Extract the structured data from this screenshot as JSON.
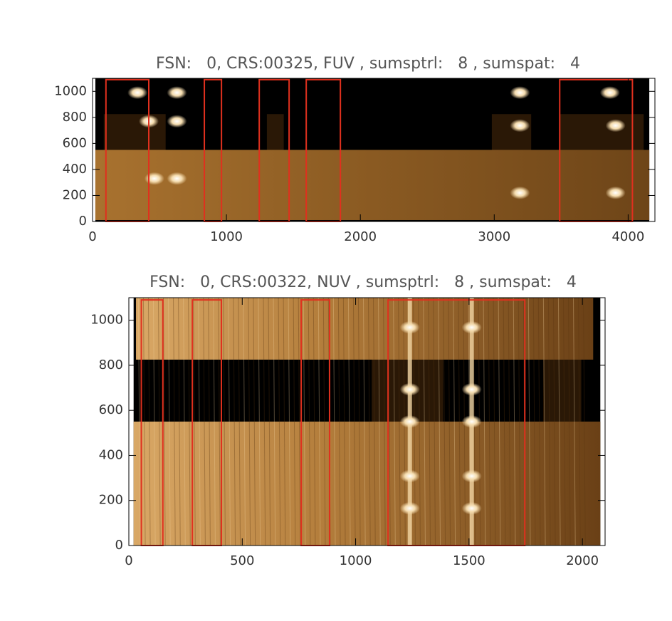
{
  "chart_data": [
    {
      "type": "image",
      "title": "FSN:   0, CRS:00325, FUV , sumsptrl:   8 , sumspat:   4",
      "xlim": [
        0,
        4200
      ],
      "ylim": [
        0,
        1100
      ],
      "xticks": [
        0,
        1000,
        2000,
        3000,
        4000
      ],
      "yticks": [
        0,
        200,
        400,
        600,
        800,
        1000
      ],
      "region_color": "#e0301e",
      "regions": [
        {
          "x": [
            100,
            420
          ],
          "y": [
            0,
            1090
          ]
        },
        {
          "x": [
            835,
            963
          ],
          "y": [
            0,
            1090
          ]
        },
        {
          "x": [
            1245,
            1468
          ],
          "y": [
            0,
            1090
          ]
        },
        {
          "x": [
            1596,
            1851
          ],
          "y": [
            0,
            1090
          ]
        },
        {
          "x": [
            3489,
            4032
          ],
          "y": [
            0,
            1090
          ]
        }
      ]
    },
    {
      "type": "image",
      "title": "FSN:   0, CRS:00322, NUV , sumsptrl:   8 , sumspat:   4",
      "xlim": [
        0,
        2100
      ],
      "ylim": [
        0,
        1100
      ],
      "xticks": [
        0,
        500,
        1000,
        1500,
        2000
      ],
      "yticks": [
        0,
        200,
        400,
        600,
        800,
        1000
      ],
      "region_color": "#e0301e",
      "regions": [
        {
          "x": [
            55,
            150
          ],
          "y": [
            0,
            1090
          ]
        },
        {
          "x": [
            280,
            408
          ],
          "y": [
            0,
            1090
          ]
        },
        {
          "x": [
            760,
            885
          ],
          "y": [
            0,
            1090
          ]
        },
        {
          "x": [
            1143,
            1746
          ],
          "y": [
            0,
            1090
          ]
        }
      ]
    }
  ]
}
